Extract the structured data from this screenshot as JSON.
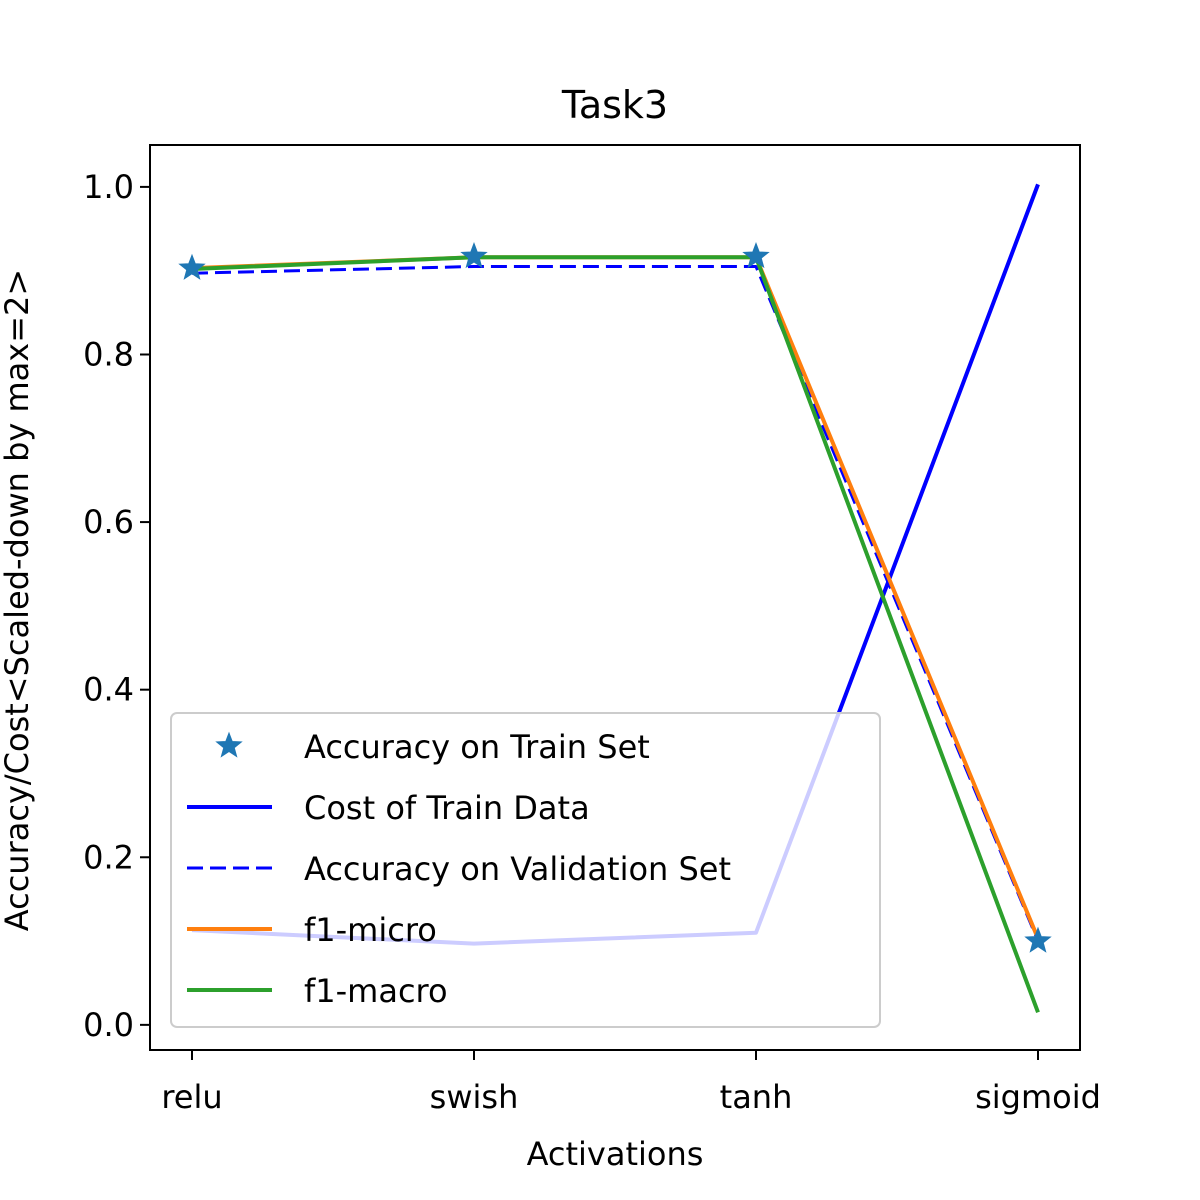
{
  "chart_data": {
    "type": "line",
    "title": "Task3",
    "xlabel": "Activations",
    "ylabel": "Accuracy/Cost<Scaled-down by max=2>",
    "categories": [
      "relu",
      "swish",
      "tanh",
      "sigmoid"
    ],
    "ylim": [
      -0.03,
      1.05
    ],
    "yticks": [
      "0.0",
      "0.2",
      "0.4",
      "0.6",
      "0.8",
      "1.0"
    ],
    "ytick_values": [
      0.0,
      0.2,
      0.4,
      0.6,
      0.8,
      1.0
    ],
    "grid": false,
    "legend_position": "lower-left",
    "series": [
      {
        "name": "Accuracy on Train Set",
        "style": "star-marker",
        "color": "#1f77b4",
        "values": [
          0.903,
          0.917,
          0.917,
          0.1
        ]
      },
      {
        "name": "Cost of Train Data",
        "style": "solid",
        "color": "#0000ff",
        "values": [
          0.113,
          0.097,
          0.11,
          1.003
        ]
      },
      {
        "name": "Accuracy on Validation Set",
        "style": "dashed",
        "color": "#0000ff",
        "values": [
          0.897,
          0.905,
          0.905,
          0.1
        ]
      },
      {
        "name": "f1-micro",
        "style": "solid",
        "color": "#ff7f0e",
        "values": [
          0.903,
          0.916,
          0.916,
          0.103
        ]
      },
      {
        "name": "f1-macro",
        "style": "solid",
        "color": "#2ca02c",
        "values": [
          0.902,
          0.916,
          0.916,
          0.015
        ]
      }
    ]
  }
}
